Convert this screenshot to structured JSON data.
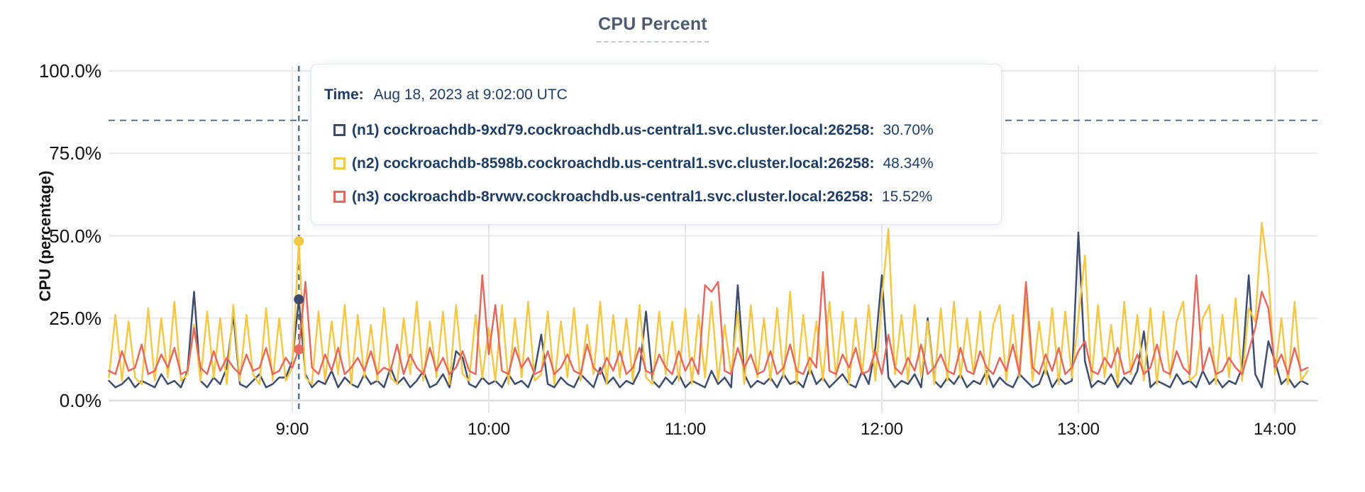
{
  "title": "CPU Percent",
  "y_axis_title": "CPU (percentage)",
  "tooltip": {
    "time_label": "Time:",
    "time_value": "Aug 18, 2023 at 9:02:00 UTC",
    "rows": [
      {
        "label": "(n1) cockroachdb-9xd79.cockroachdb.us-central1.svc.cluster.local:26258:",
        "value": "30.70%"
      },
      {
        "label": "(n2) cockroachdb-8598b.cockroachdb.us-central1.svc.cluster.local:26258:",
        "value": "48.34%"
      },
      {
        "label": "(n3) cockroachdb-8rvwv.cockroachdb.us-central1.svc.cluster.local:26258:",
        "value": "15.52%"
      }
    ]
  },
  "colors": {
    "series_n1": "#3e4d6d",
    "series_n2": "#f5c843",
    "series_n3": "#e6685f",
    "dashed_guides": "#54758a",
    "grid": "#e9e9e9",
    "title_text": "#4c5a73",
    "tooltip_text": "#1e3d64"
  },
  "chart_data": {
    "type": "line",
    "title": "CPU Percent",
    "xlabel": "",
    "ylabel": "CPU (percentage)",
    "ylim": [
      0,
      100
    ],
    "grid": true,
    "legend_position": "tooltip-overlay",
    "axis": {
      "ytick_labels": [
        "100.0%",
        "75.0%",
        "50.0%",
        "25.0%",
        "0.0%"
      ],
      "ytick_values": [
        100,
        75,
        50,
        25,
        0
      ],
      "xtick_labels": [
        "9:00",
        "10:00",
        "11:00",
        "12:00",
        "13:00",
        "14:00"
      ],
      "xtick_minutes": [
        540,
        600,
        660,
        720,
        780,
        840
      ],
      "x_start_min": 484,
      "x_step_min": 2,
      "x_end_min": 850
    },
    "threshold_pct": 85,
    "hover": {
      "time_min": 542,
      "time_text": "Aug 18, 2023 at 9:02:00 UTC",
      "values": [
        30.7,
        48.34,
        15.52
      ]
    },
    "series": [
      {
        "name": "(n1) cockroachdb-9xd79.cockroachdb.us-central1.svc.cluster.local:26258",
        "color": "#3e4d6d",
        "values": [
          6,
          4,
          5,
          7,
          4,
          6,
          5,
          4,
          8,
          5,
          6,
          4,
          9,
          33,
          6,
          4,
          7,
          5,
          10,
          26,
          5,
          4,
          6,
          8,
          4,
          5,
          7,
          7,
          12,
          30.7,
          8,
          4,
          6,
          5,
          9,
          4,
          7,
          5,
          4,
          8,
          5,
          6,
          4,
          10,
          5,
          7,
          4,
          6,
          9,
          4,
          5,
          8,
          4,
          15,
          13,
          5,
          4,
          7,
          5,
          6,
          4,
          8,
          5,
          6,
          4,
          9,
          20,
          5,
          4,
          7,
          5,
          4,
          8,
          6,
          4,
          10,
          5,
          7,
          4,
          6,
          5,
          9,
          27,
          6,
          4,
          7,
          5,
          8,
          4,
          6,
          5,
          4,
          9,
          5,
          7,
          4,
          35,
          8,
          4,
          6,
          5,
          7,
          4,
          8,
          5,
          6,
          4,
          10,
          5,
          7,
          4,
          6,
          8,
          5,
          4,
          9,
          5,
          16,
          38,
          7,
          4,
          6,
          5,
          8,
          4,
          25,
          6,
          4,
          7,
          5,
          8,
          4,
          6,
          5,
          9,
          4,
          7,
          5,
          4,
          8,
          6,
          4,
          5,
          10,
          4,
          7,
          5,
          6,
          51,
          12,
          4,
          6,
          5,
          8,
          4,
          7,
          5,
          9,
          21,
          4,
          6,
          5,
          4,
          8,
          5,
          6,
          4,
          9,
          5,
          7,
          4,
          6,
          5,
          10,
          38,
          8,
          4,
          18,
          12,
          5,
          7,
          4,
          6,
          5
        ]
      },
      {
        "name": "(n2) cockroachdb-8598b.cockroachdb.us-central1.svc.cluster.local:26258",
        "color": "#f5c843",
        "values": [
          7,
          26,
          6,
          24,
          7,
          5,
          28,
          6,
          25,
          7,
          30,
          6,
          8,
          23,
          6,
          27,
          7,
          25,
          5,
          29,
          6,
          26,
          8,
          5,
          28,
          6,
          25,
          6,
          10,
          48.34,
          7,
          5,
          27,
          6,
          24,
          8,
          29,
          5,
          26,
          7,
          23,
          6,
          28,
          7,
          5,
          25,
          8,
          30,
          6,
          24,
          7,
          27,
          5,
          29,
          8,
          6,
          26,
          7,
          22,
          6,
          29,
          5,
          25,
          7,
          30,
          6,
          8,
          27,
          5,
          24,
          7,
          28,
          6,
          23,
          8,
          30,
          5,
          26,
          7,
          25,
          6,
          29,
          7,
          5,
          27,
          8,
          24,
          6,
          28,
          5,
          26,
          7,
          30,
          6,
          23,
          8,
          27,
          5,
          29,
          7,
          25,
          6,
          28,
          7,
          33,
          5,
          26,
          8,
          24,
          6,
          30,
          7,
          27,
          5,
          25,
          8,
          29,
          6,
          31,
          52,
          8,
          26,
          6,
          29,
          7,
          24,
          5,
          28,
          6,
          30,
          7,
          25,
          8,
          27,
          5,
          23,
          29,
          6,
          26,
          7,
          31,
          6,
          24,
          8,
          28,
          5,
          27,
          7,
          25,
          44,
          6,
          29,
          7,
          23,
          5,
          30,
          8,
          26,
          6,
          28,
          5,
          27,
          7,
          24,
          30,
          6,
          8,
          25,
          29,
          5,
          26,
          7,
          31,
          6,
          28,
          24,
          54,
          38,
          8,
          25,
          5,
          30,
          6,
          9
        ]
      },
      {
        "name": "(n3) cockroachdb-8rvwv.cockroachdb.us-central1.svc.cluster.local:26258",
        "color": "#e6685f",
        "values": [
          9,
          8,
          15,
          9,
          10,
          17,
          8,
          9,
          14,
          10,
          16,
          8,
          9,
          22,
          10,
          8,
          15,
          9,
          13,
          10,
          8,
          14,
          9,
          10,
          16,
          8,
          9,
          13,
          10,
          15.52,
          36,
          10,
          8,
          14,
          9,
          16,
          8,
          10,
          13,
          9,
          15,
          8,
          10,
          9,
          17,
          8,
          14,
          10,
          8,
          16,
          9,
          13,
          8,
          10,
          15,
          9,
          8,
          38,
          14,
          29,
          9,
          8,
          16,
          10,
          13,
          8,
          9,
          15,
          8,
          10,
          14,
          9,
          8,
          17,
          10,
          8,
          13,
          9,
          15,
          8,
          10,
          16,
          9,
          8,
          14,
          10,
          8,
          15,
          9,
          13,
          8,
          35,
          33,
          36,
          9,
          8,
          16,
          10,
          14,
          8,
          9,
          15,
          8,
          10,
          17,
          9,
          8,
          13,
          10,
          39,
          9,
          8,
          14,
          10,
          16,
          8,
          9,
          15,
          8,
          20,
          10,
          8,
          13,
          9,
          17,
          8,
          10,
          14,
          9,
          8,
          16,
          9,
          8,
          15,
          10,
          8,
          13,
          9,
          17,
          8,
          36,
          10,
          8,
          14,
          9,
          16,
          8,
          10,
          15,
          18,
          9,
          8,
          13,
          10,
          16,
          8,
          9,
          14,
          8,
          10,
          17,
          9,
          8,
          15,
          10,
          8,
          38,
          9,
          16,
          8,
          9,
          13,
          10,
          8,
          15,
          22,
          33,
          28,
          10,
          14,
          8,
          16,
          9,
          10
        ]
      }
    ]
  }
}
